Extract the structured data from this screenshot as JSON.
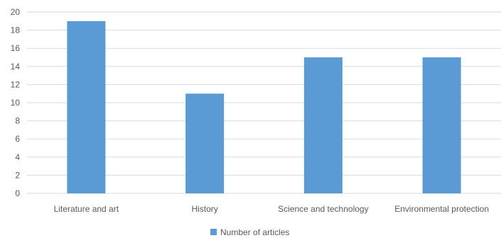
{
  "chart_data": {
    "type": "bar",
    "title": "",
    "xlabel": "",
    "ylabel": "",
    "categories": [
      "Literature and art",
      "History",
      "Science and technology",
      "Environmental protection"
    ],
    "series": [
      {
        "name": "Number of articles",
        "values": [
          19,
          11,
          15,
          15
        ]
      }
    ],
    "ylim": [
      0,
      20
    ],
    "yticks": [
      "0",
      "2",
      "4",
      "6",
      "8",
      "10",
      "12",
      "14",
      "16",
      "18",
      "20"
    ],
    "grid": true,
    "legend_position": "bottom",
    "colors": {
      "bar": "#5b9bd5",
      "grid": "#d9d9d9",
      "text": "#595959"
    }
  }
}
